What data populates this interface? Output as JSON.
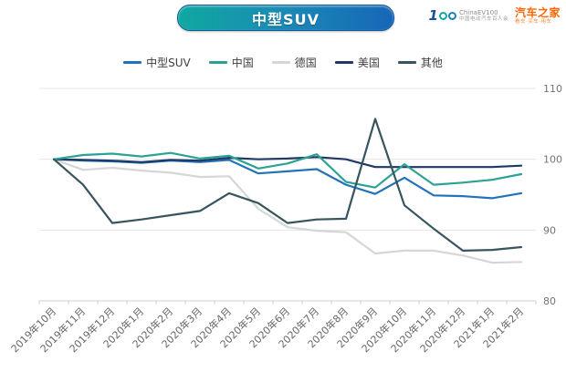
{
  "header": {
    "title": "中型SUV",
    "logos": {
      "ev100": {
        "mark_digit": "1",
        "name": "ChinaEV100",
        "subtitle": "中国电动汽车百人会"
      },
      "autohome": {
        "name": "汽车之家",
        "subtitle": "看车·买车·用车"
      }
    }
  },
  "chart_data": {
    "type": "line",
    "title": "中型SUV",
    "xlabel": "",
    "ylabel": "",
    "ylim": [
      80,
      110
    ],
    "yticks": [
      80,
      90,
      100,
      110
    ],
    "y_axis_side": "right",
    "grid": true,
    "legend_position": "top",
    "categories": [
      "2019年10月",
      "2019年11月",
      "2019年12月",
      "2020年1月",
      "2020年2月",
      "2020年3月",
      "2020年4月",
      "2020年5月",
      "2020年6月",
      "2020年7月",
      "2020年8月",
      "2020年9月",
      "2020年10月",
      "2020年11月",
      "2020年12月",
      "2021年1月",
      "2021年2月"
    ],
    "series": [
      {
        "name": "中型SUV",
        "color": "#2272b8",
        "values": [
          100,
          99.8,
          99.7,
          99.5,
          99.8,
          99.6,
          99.9,
          98.0,
          98.3,
          98.6,
          96.4,
          95.1,
          97.4,
          94.9,
          94.8,
          94.5,
          95.2
        ]
      },
      {
        "name": "中国",
        "color": "#2ba293",
        "values": [
          100,
          100.6,
          100.8,
          100.4,
          100.9,
          100.1,
          100.5,
          98.7,
          99.4,
          100.7,
          96.8,
          96.0,
          99.3,
          96.4,
          96.7,
          97.1,
          97.9
        ]
      },
      {
        "name": "德国",
        "color": "#d6d6d6",
        "values": [
          100,
          98.5,
          98.8,
          98.4,
          98.1,
          97.5,
          97.6,
          93.0,
          90.4,
          89.9,
          89.7,
          86.7,
          87.1,
          87.1,
          86.4,
          85.4,
          85.5
        ]
      },
      {
        "name": "美国",
        "color": "#1f3864",
        "values": [
          100,
          99.9,
          99.8,
          99.6,
          99.9,
          99.8,
          100.2,
          100.0,
          100.1,
          100.3,
          100.0,
          98.9,
          98.9,
          98.9,
          98.9,
          98.9,
          99.1
        ]
      },
      {
        "name": "其他",
        "color": "#37555e",
        "values": [
          100,
          96.4,
          91.0,
          91.5,
          92.1,
          92.7,
          95.2,
          93.8,
          91.0,
          91.5,
          91.6,
          105.7,
          93.5,
          90.2,
          87.1,
          87.2,
          87.6
        ]
      }
    ]
  }
}
